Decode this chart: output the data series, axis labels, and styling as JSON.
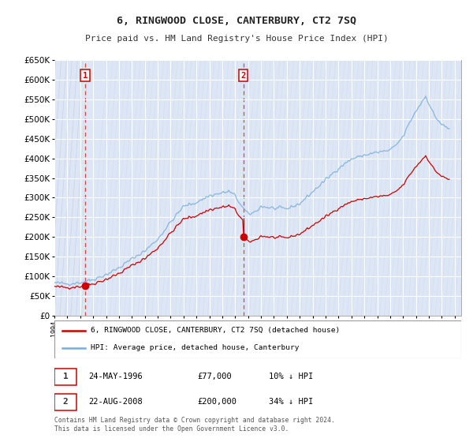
{
  "title": "6, RINGWOOD CLOSE, CANTERBURY, CT2 7SQ",
  "subtitle": "Price paid vs. HM Land Registry's House Price Index (HPI)",
  "ylim": [
    0,
    650000
  ],
  "yticks": [
    0,
    50000,
    100000,
    150000,
    200000,
    250000,
    300000,
    350000,
    400000,
    450000,
    500000,
    550000,
    600000,
    650000
  ],
  "background_color": "#ffffff",
  "plot_bg_color": "#dce6f5",
  "grid_color": "#ffffff",
  "line1_color": "#cc0000",
  "line2_color": "#7aaddb",
  "sale1_x": 1996.38,
  "sale1_price": 77000,
  "sale2_x": 2008.63,
  "sale2_price": 200000,
  "legend_label1": "6, RINGWOOD CLOSE, CANTERBURY, CT2 7SQ (detached house)",
  "legend_label2": "HPI: Average price, detached house, Canterbury",
  "ann1_date": "24-MAY-1996",
  "ann1_price": "£77,000",
  "ann1_hpi": "10% ↓ HPI",
  "ann2_date": "22-AUG-2008",
  "ann2_price": "£200,000",
  "ann2_hpi": "34% ↓ HPI",
  "footer": "Contains HM Land Registry data © Crown copyright and database right 2024.\nThis data is licensed under the Open Government Licence v3.0.",
  "xmin": 1994.0,
  "xmax": 2025.5
}
